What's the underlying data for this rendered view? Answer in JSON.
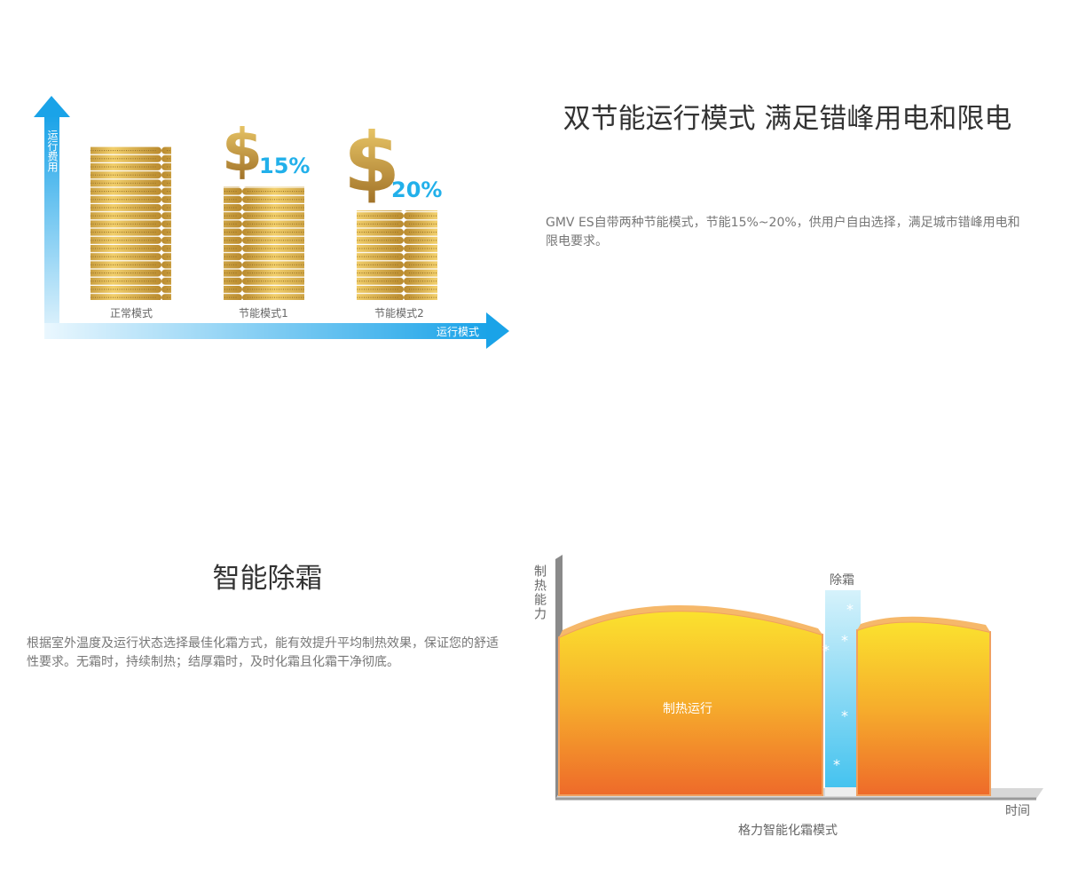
{
  "section1": {
    "title": "双节能运行模式 满足错峰用电和限电",
    "description": "GMV ES自带两种节能模式，节能15%~20%，供用户自由选择，满足城市错峰用电和限电要求。",
    "illustration": {
      "y_axis_label": "运行费用",
      "x_axis_label": "运行模式",
      "bars": [
        {
          "label": "正常模式",
          "saving": ""
        },
        {
          "label": "节能模式1",
          "saving": "15%"
        },
        {
          "label": "节能模式2",
          "saving": "20%"
        }
      ],
      "accent_color": "#1aa3e8",
      "saving_color": "#22b0ea"
    }
  },
  "section2": {
    "title": "智能除霜",
    "description": "根据室外温度及运行状态选择最佳化霜方式，能有效提升平均制热效果，保证您的舒适性要求。无霜时，持续制热；结厚霜时，及时化霜且化霜干净彻底。",
    "illustration": {
      "y_axis_label": "制热能力",
      "x_axis_label": "时间",
      "defrost_label": "除霜",
      "heating_label": "制热运行",
      "caption": "格力智能化霜模式"
    }
  }
}
